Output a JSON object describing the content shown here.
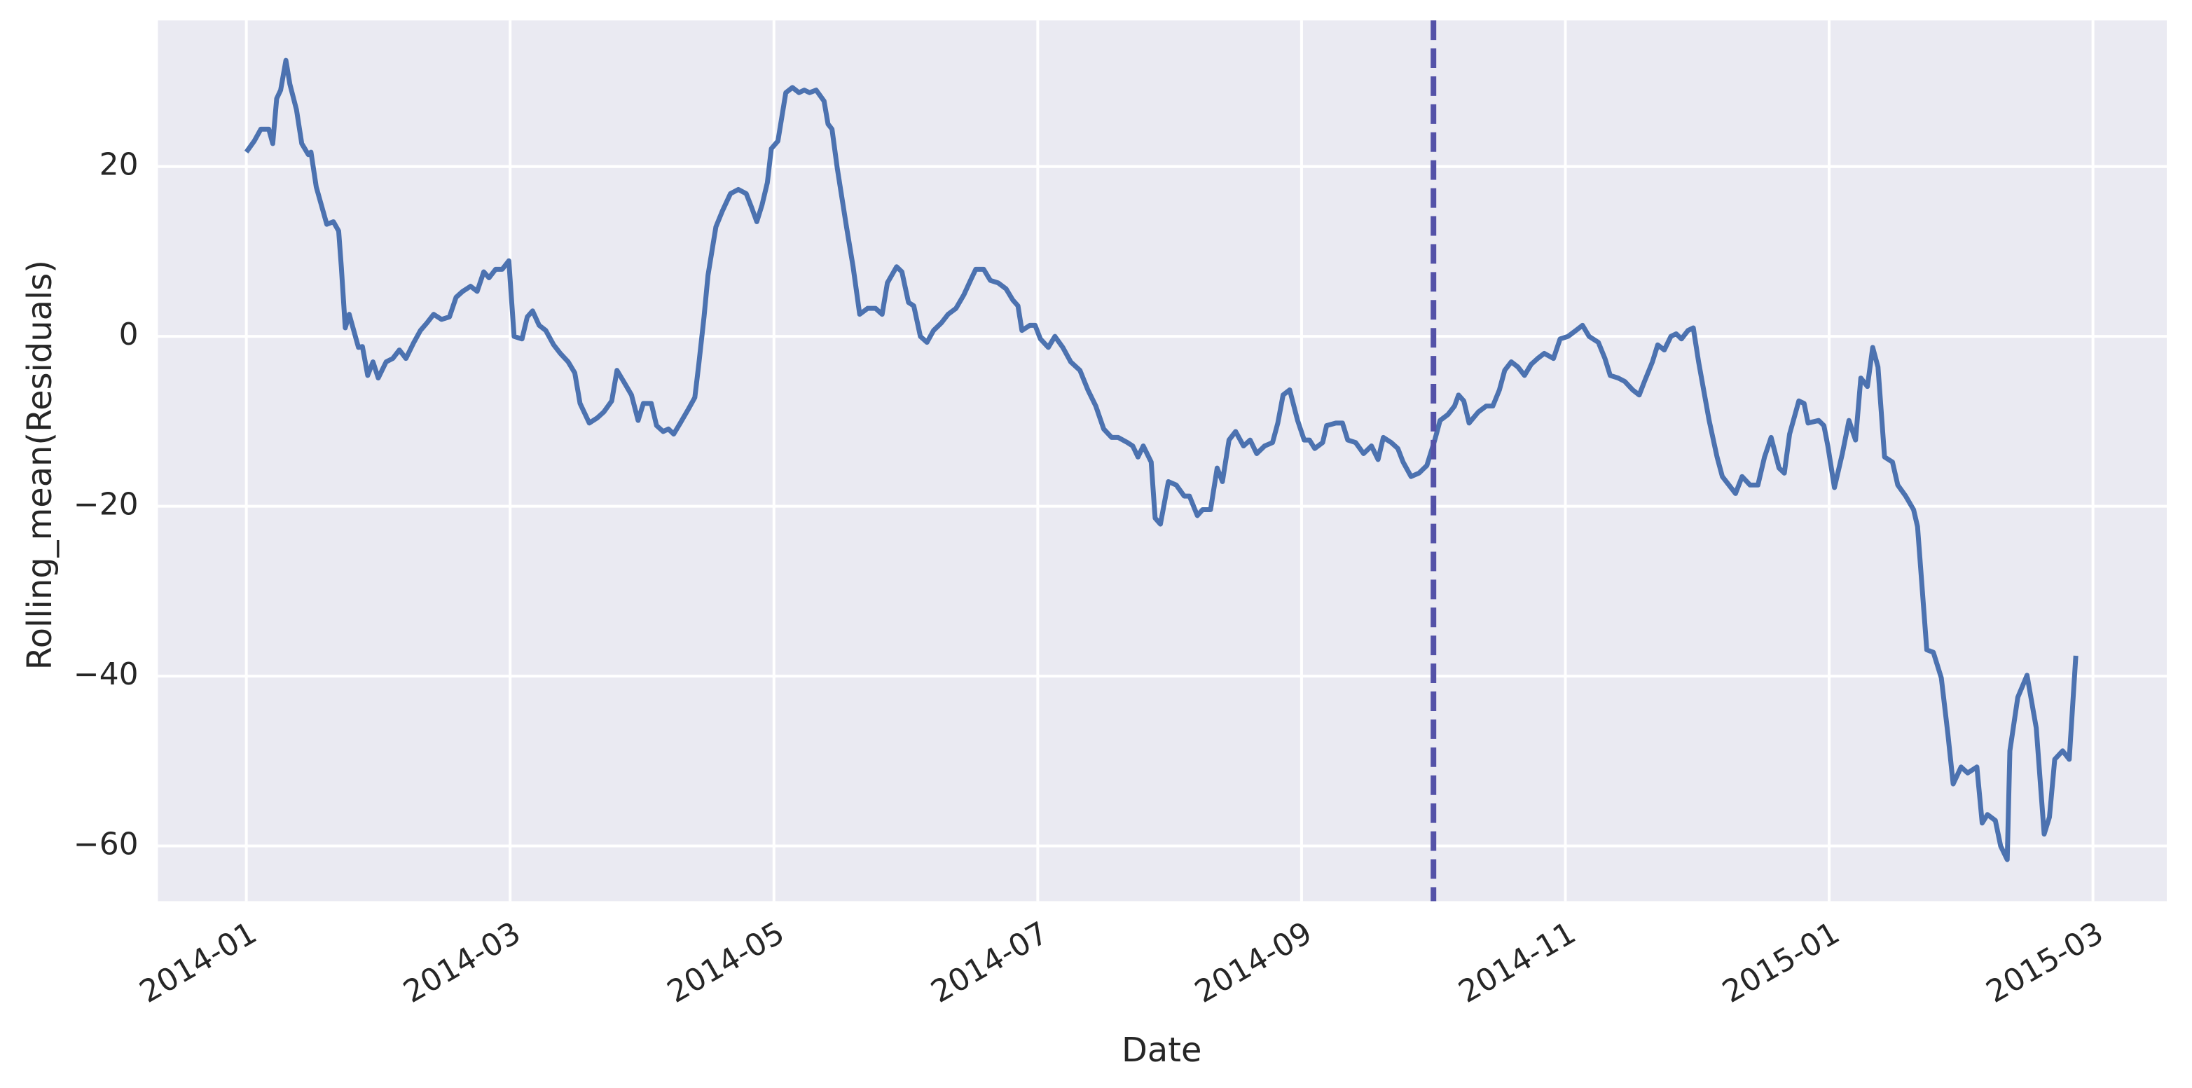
{
  "chart_data": {
    "type": "line",
    "xlabel": "Date",
    "ylabel": "Rolling_mean(Residuals)",
    "color": "#4c72b0",
    "background": "#eaeaf2",
    "grid": true,
    "vline": {
      "x": 9,
      "color": "#5452a8",
      "dashed": true
    },
    "xlim": [
      -0.67,
      14.56
    ],
    "xticks": [
      {
        "value": 0,
        "label": "2014-01"
      },
      {
        "value": 2,
        "label": "2014-03"
      },
      {
        "value": 4,
        "label": "2014-05"
      },
      {
        "value": 6,
        "label": "2014-07"
      },
      {
        "value": 8,
        "label": "2014-09"
      },
      {
        "value": 10,
        "label": "2014-11"
      },
      {
        "value": 12,
        "label": "2015-01"
      },
      {
        "value": 14,
        "label": "2015-03"
      }
    ],
    "ylim": [
      -66.5,
      37.2
    ],
    "yticks": [
      {
        "value": -60,
        "label": "−60"
      },
      {
        "value": -40,
        "label": "−40"
      },
      {
        "value": -20,
        "label": "−20"
      },
      0,
      20
    ],
    "x": [
      0,
      0.06,
      0.11,
      0.17,
      0.2,
      0.23,
      0.26,
      0.3,
      0.33,
      0.38,
      0.42,
      0.47,
      0.49,
      0.53,
      0.61,
      0.66,
      0.7,
      0.72,
      0.75,
      0.78,
      0.85,
      0.88,
      0.92,
      0.96,
      1.0,
      1.06,
      1.11,
      1.16,
      1.21,
      1.27,
      1.32,
      1.37,
      1.42,
      1.48,
      1.54,
      1.59,
      1.64,
      1.7,
      1.75,
      1.8,
      1.84,
      1.89,
      1.94,
      1.99,
      2.03,
      2.09,
      2.13,
      2.17,
      2.22,
      2.27,
      2.33,
      2.38,
      2.44,
      2.49,
      2.53,
      2.6,
      2.66,
      2.71,
      2.77,
      2.81,
      2.86,
      2.92,
      2.97,
      3.01,
      3.07,
      3.11,
      3.16,
      3.2,
      3.24,
      3.29,
      3.35,
      3.4,
      3.43,
      3.47,
      3.5,
      3.56,
      3.61,
      3.67,
      3.73,
      3.79,
      3.83,
      3.87,
      3.91,
      3.95,
      3.98,
      4.03,
      4.09,
      4.14,
      4.19,
      4.23,
      4.27,
      4.32,
      4.38,
      4.41,
      4.44,
      4.48,
      4.55,
      4.6,
      4.65,
      4.71,
      4.77,
      4.82,
      4.86,
      4.93,
      4.97,
      5.02,
      5.06,
      5.11,
      5.16,
      5.21,
      5.27,
      5.32,
      5.38,
      5.44,
      5.49,
      5.53,
      5.59,
      5.64,
      5.7,
      5.76,
      5.81,
      5.85,
      5.88,
      5.94,
      5.98,
      6.02,
      6.08,
      6.13,
      6.19,
      6.25,
      6.32,
      6.38,
      6.44,
      6.5,
      6.56,
      6.61,
      6.68,
      6.72,
      6.76,
      6.8,
      6.86,
      6.89,
      6.93,
      6.99,
      7.05,
      7.11,
      7.15,
      7.21,
      7.25,
      7.31,
      7.36,
      7.4,
      7.45,
      7.5,
      7.56,
      7.61,
      7.66,
      7.72,
      7.78,
      7.82,
      7.86,
      7.91,
      7.97,
      8.02,
      8.06,
      8.1,
      8.16,
      8.19,
      8.26,
      8.31,
      8.35,
      8.41,
      8.47,
      8.53,
      8.58,
      8.62,
      8.68,
      8.73,
      8.77,
      8.83,
      8.89,
      8.95,
      9.01,
      9.05,
      9.11,
      9.16,
      9.19,
      9.23,
      9.27,
      9.34,
      9.4,
      9.45,
      9.5,
      9.54,
      9.59,
      9.64,
      9.69,
      9.74,
      9.79,
      9.84,
      9.91,
      9.96,
      10.02,
      10.08,
      10.13,
      10.18,
      10.25,
      10.3,
      10.34,
      10.4,
      10.45,
      10.51,
      10.56,
      10.6,
      10.66,
      10.7,
      10.75,
      10.8,
      10.84,
      10.88,
      10.93,
      10.97,
      11.01,
      11.09,
      11.15,
      11.19,
      11.24,
      11.29,
      11.34,
      11.4,
      11.46,
      11.51,
      11.56,
      11.62,
      11.66,
      11.7,
      11.77,
      11.81,
      11.84,
      11.92,
      11.96,
      11.99,
      12.04,
      12.1,
      12.15,
      12.2,
      12.24,
      12.29,
      12.33,
      12.37,
      12.42,
      12.48,
      12.52,
      12.58,
      12.64,
      12.67,
      12.74,
      12.79,
      12.85,
      12.9,
      12.94,
      13.0,
      13.05,
      13.12,
      13.16,
      13.2,
      13.26,
      13.3,
      13.35,
      13.37,
      13.43,
      13.5,
      13.57,
      13.63,
      13.67,
      13.71,
      13.77,
      13.82,
      13.87
    ],
    "values": [
      21.7,
      23,
      24.4,
      24.4,
      22.7,
      28,
      29,
      32.5,
      29.7,
      26.7,
      22.7,
      21.4,
      21.7,
      17.6,
      13.2,
      13.5,
      12.4,
      8.2,
      1,
      2.6,
      -1.3,
      -1.2,
      -4.6,
      -3,
      -4.9,
      -3,
      -2.6,
      -1.6,
      -2.6,
      -0.7,
      0.7,
      1.6,
      2.6,
      2,
      2.3,
      4.6,
      5.3,
      5.9,
      5.3,
      7.6,
      6.9,
      7.9,
      7.9,
      8.9,
      0,
      -0.3,
      2.3,
      3,
      1.3,
      0.7,
      -1,
      -2,
      -3,
      -4.3,
      -7.9,
      -10.2,
      -9.6,
      -8.9,
      -7.6,
      -4,
      -5.3,
      -6.9,
      -9.9,
      -7.9,
      -7.9,
      -10.5,
      -11.2,
      -10.9,
      -11.5,
      -10.2,
      -8.6,
      -7.2,
      -3.3,
      2.3,
      7.2,
      12.9,
      14.8,
      16.8,
      17.3,
      16.8,
      15.2,
      13.5,
      15.5,
      18.1,
      22.1,
      23,
      28.7,
      29.3,
      28.7,
      29,
      28.7,
      29,
      27.7,
      25,
      24.4,
      19.8,
      12.9,
      8.2,
      2.6,
      3.3,
      3.3,
      2.6,
      6.3,
      8.2,
      7.6,
      4,
      3.6,
      0,
      -0.7,
      0.7,
      1.6,
      2.6,
      3.3,
      4.9,
      6.6,
      7.9,
      7.9,
      6.6,
      6.3,
      5.6,
      4.3,
      3.6,
      0.7,
      1.3,
      1.3,
      -0.3,
      -1.3,
      0,
      -1.3,
      -3,
      -4,
      -6.3,
      -8.2,
      -10.9,
      -11.9,
      -11.9,
      -12.5,
      -12.9,
      -14.2,
      -12.9,
      -14.8,
      -21.4,
      -22.1,
      -17.1,
      -17.5,
      -18.8,
      -18.8,
      -21.1,
      -20.4,
      -20.4,
      -15.5,
      -17.1,
      -12.2,
      -11.2,
      -12.9,
      -12.2,
      -13.8,
      -12.9,
      -12.5,
      -10.2,
      -6.9,
      -6.3,
      -9.9,
      -12.2,
      -12.2,
      -13.2,
      -12.5,
      -10.5,
      -10.2,
      -10.2,
      -12.2,
      -12.5,
      -13.8,
      -12.9,
      -14.5,
      -11.9,
      -12.5,
      -13.2,
      -14.8,
      -16.5,
      -16.1,
      -15.2,
      -12.2,
      -9.9,
      -9.2,
      -8.2,
      -6.9,
      -7.6,
      -10.2,
      -8.9,
      -8.2,
      -8.2,
      -6.3,
      -4,
      -3,
      -3.6,
      -4.6,
      -3.3,
      -2.6,
      -2,
      -2.6,
      -0.3,
      0,
      0.7,
      1.3,
      0,
      -0.7,
      -2.6,
      -4.6,
      -4.9,
      -5.3,
      -6.3,
      -6.9,
      -5.3,
      -3,
      -1,
      -1.6,
      0,
      0.3,
      -0.3,
      0.7,
      1,
      -3,
      -9.9,
      -14.2,
      -16.5,
      -17.5,
      -18.5,
      -16.5,
      -17.5,
      -17.5,
      -14.2,
      -11.9,
      -15.5,
      -16.1,
      -11.5,
      -7.6,
      -7.9,
      -10.2,
      -9.9,
      -10.5,
      -12.9,
      -17.8,
      -13.8,
      -9.9,
      -12.2,
      -4.9,
      -5.9,
      -1.3,
      -3.6,
      -14.2,
      -14.8,
      -17.5,
      -18.8,
      -20.4,
      -22.4,
      -36.9,
      -37.2,
      -40.2,
      -46.8,
      -52.7,
      -50.7,
      -51.4,
      -50.7,
      -57.3,
      -56.3,
      -57,
      -60,
      -61.6,
      -48.8,
      -42.5,
      -39.9,
      -46.1,
      -58.6,
      -56.6,
      -49.8,
      -48.8,
      -49.8,
      -37.6
    ]
  }
}
